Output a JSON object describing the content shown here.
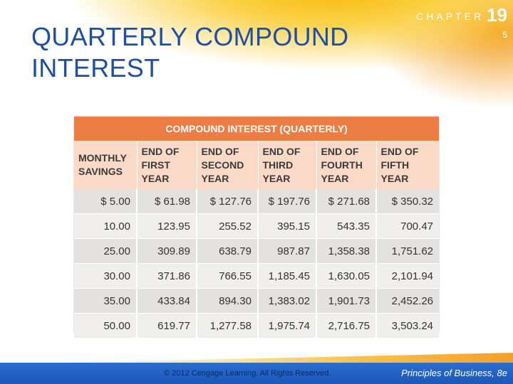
{
  "slide": {
    "title": "QUARTERLY COMPOUND INTEREST",
    "chapter_word": "CHAPTER",
    "chapter_number": "19",
    "slide_number": "5"
  },
  "table": {
    "caption": "COMPOUND INTEREST (QUARTERLY)",
    "headers": [
      "MONTHLY SAVINGS",
      "END OF FIRST YEAR",
      "END OF SECOND YEAR",
      "END OF THIRD YEAR",
      "END OF FOURTH YEAR",
      "END OF FIFTH YEAR"
    ],
    "rows": [
      [
        "$ 5.00",
        "$ 61.98",
        "$ 127.76",
        "$ 197.76",
        "$ 271.68",
        "$ 350.32"
      ],
      [
        "10.00",
        "123.95",
        "255.52",
        "395.15",
        "543.35",
        "700.47"
      ],
      [
        "25.00",
        "309.89",
        "638.79",
        "987.87",
        "1,358.38",
        "1,751.62"
      ],
      [
        "30.00",
        "371.86",
        "766.55",
        "1,185.45",
        "1,630.05",
        "2,101.94"
      ],
      [
        "35.00",
        "433.84",
        "894.30",
        "1,383.02",
        "1,901.73",
        "2,452.26"
      ],
      [
        "50.00",
        "619.77",
        "1,277.58",
        "1,975.74",
        "2,716.75",
        "3,503.24"
      ]
    ]
  },
  "footer": {
    "copyright": "© 2012 Cengage Learning. All Rights Reserved.",
    "book_title": "Principles of Business, 8e"
  },
  "colors": {
    "title_blue": "#1c4fa6",
    "caption_orange": "#ec7d45",
    "header_peach": "#fbd9c7",
    "footer_blue": "#1b56b8"
  }
}
